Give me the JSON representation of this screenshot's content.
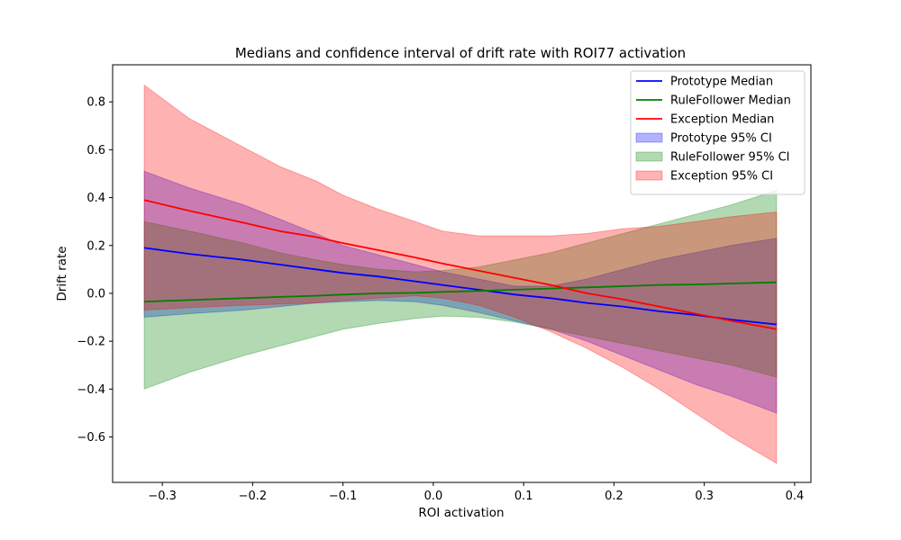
{
  "chart_data": {
    "type": "line",
    "title": "Medians and confidence interval of drift rate with ROI77 activation",
    "xlabel": "ROI activation",
    "ylabel": "Drift rate",
    "xlim": [
      -0.355,
      0.418
    ],
    "ylim": [
      -0.79,
      0.955
    ],
    "xticks": [
      -0.3,
      -0.2,
      -0.1,
      0.0,
      0.1,
      0.2,
      0.3,
      0.4
    ],
    "xtick_labels": [
      "−0.3",
      "−0.2",
      "−0.1",
      "0.0",
      "0.1",
      "0.2",
      "0.3",
      "0.4"
    ],
    "yticks": [
      -0.6,
      -0.4,
      -0.2,
      0.0,
      0.2,
      0.4,
      0.6,
      0.8
    ],
    "ytick_labels": [
      "−0.6",
      "−0.4",
      "−0.2",
      "0.0",
      "0.2",
      "0.4",
      "0.6",
      "0.8"
    ],
    "grid": false,
    "legend_position": "top-right",
    "x": [
      -0.32,
      -0.27,
      -0.21,
      -0.17,
      -0.13,
      -0.1,
      -0.06,
      -0.02,
      0.01,
      0.05,
      0.09,
      0.13,
      0.17,
      0.21,
      0.25,
      0.29,
      0.33,
      0.38
    ],
    "series": [
      {
        "name": "Prototype Median",
        "kind": "line",
        "color": "#0000ff",
        "values": [
          0.19,
          0.165,
          0.14,
          0.12,
          0.1,
          0.085,
          0.07,
          0.05,
          0.035,
          0.015,
          -0.005,
          -0.02,
          -0.04,
          -0.055,
          -0.075,
          -0.09,
          -0.11,
          -0.13
        ]
      },
      {
        "name": "RuleFollower Median",
        "kind": "line",
        "color": "#008000",
        "values": [
          -0.035,
          -0.028,
          -0.02,
          -0.015,
          -0.01,
          -0.005,
          0.0,
          0.002,
          0.006,
          0.01,
          0.015,
          0.02,
          0.025,
          0.03,
          0.035,
          0.037,
          0.041,
          0.046
        ]
      },
      {
        "name": "Exception Median",
        "kind": "line",
        "color": "#ff0000",
        "values": [
          0.39,
          0.345,
          0.295,
          0.26,
          0.235,
          0.21,
          0.18,
          0.15,
          0.125,
          0.095,
          0.065,
          0.035,
          0.0,
          -0.025,
          -0.055,
          -0.085,
          -0.115,
          -0.15
        ]
      },
      {
        "name": "Prototype 95% CI",
        "kind": "band",
        "color": "#0000ff",
        "opacity": 0.3,
        "lower": [
          -0.1,
          -0.085,
          -0.07,
          -0.055,
          -0.04,
          -0.035,
          -0.03,
          -0.035,
          -0.05,
          -0.08,
          -0.115,
          -0.15,
          -0.2,
          -0.26,
          -0.32,
          -0.38,
          -0.43,
          -0.5
        ],
        "upper": [
          0.51,
          0.44,
          0.37,
          0.31,
          0.25,
          0.2,
          0.16,
          0.12,
          0.09,
          0.06,
          0.03,
          0.03,
          0.06,
          0.1,
          0.14,
          0.17,
          0.2,
          0.23
        ]
      },
      {
        "name": "RuleFollower 95% CI",
        "kind": "band",
        "color": "#008000",
        "opacity": 0.3,
        "lower": [
          -0.4,
          -0.33,
          -0.26,
          -0.22,
          -0.18,
          -0.15,
          -0.125,
          -0.105,
          -0.095,
          -0.1,
          -0.12,
          -0.15,
          -0.18,
          -0.21,
          -0.24,
          -0.27,
          -0.3,
          -0.35
        ],
        "upper": [
          0.3,
          0.26,
          0.21,
          0.17,
          0.14,
          0.12,
          0.1,
          0.09,
          0.095,
          0.11,
          0.14,
          0.17,
          0.21,
          0.25,
          0.29,
          0.33,
          0.37,
          0.43
        ]
      },
      {
        "name": "Exception 95% CI",
        "kind": "band",
        "color": "#ff0000",
        "opacity": 0.3,
        "lower": [
          -0.07,
          -0.06,
          -0.05,
          -0.045,
          -0.04,
          -0.03,
          -0.02,
          -0.01,
          -0.02,
          -0.05,
          -0.1,
          -0.16,
          -0.23,
          -0.31,
          -0.4,
          -0.5,
          -0.6,
          -0.71
        ],
        "upper": [
          0.87,
          0.73,
          0.61,
          0.53,
          0.47,
          0.41,
          0.35,
          0.3,
          0.26,
          0.24,
          0.24,
          0.24,
          0.25,
          0.27,
          0.28,
          0.3,
          0.32,
          0.34
        ]
      }
    ]
  }
}
